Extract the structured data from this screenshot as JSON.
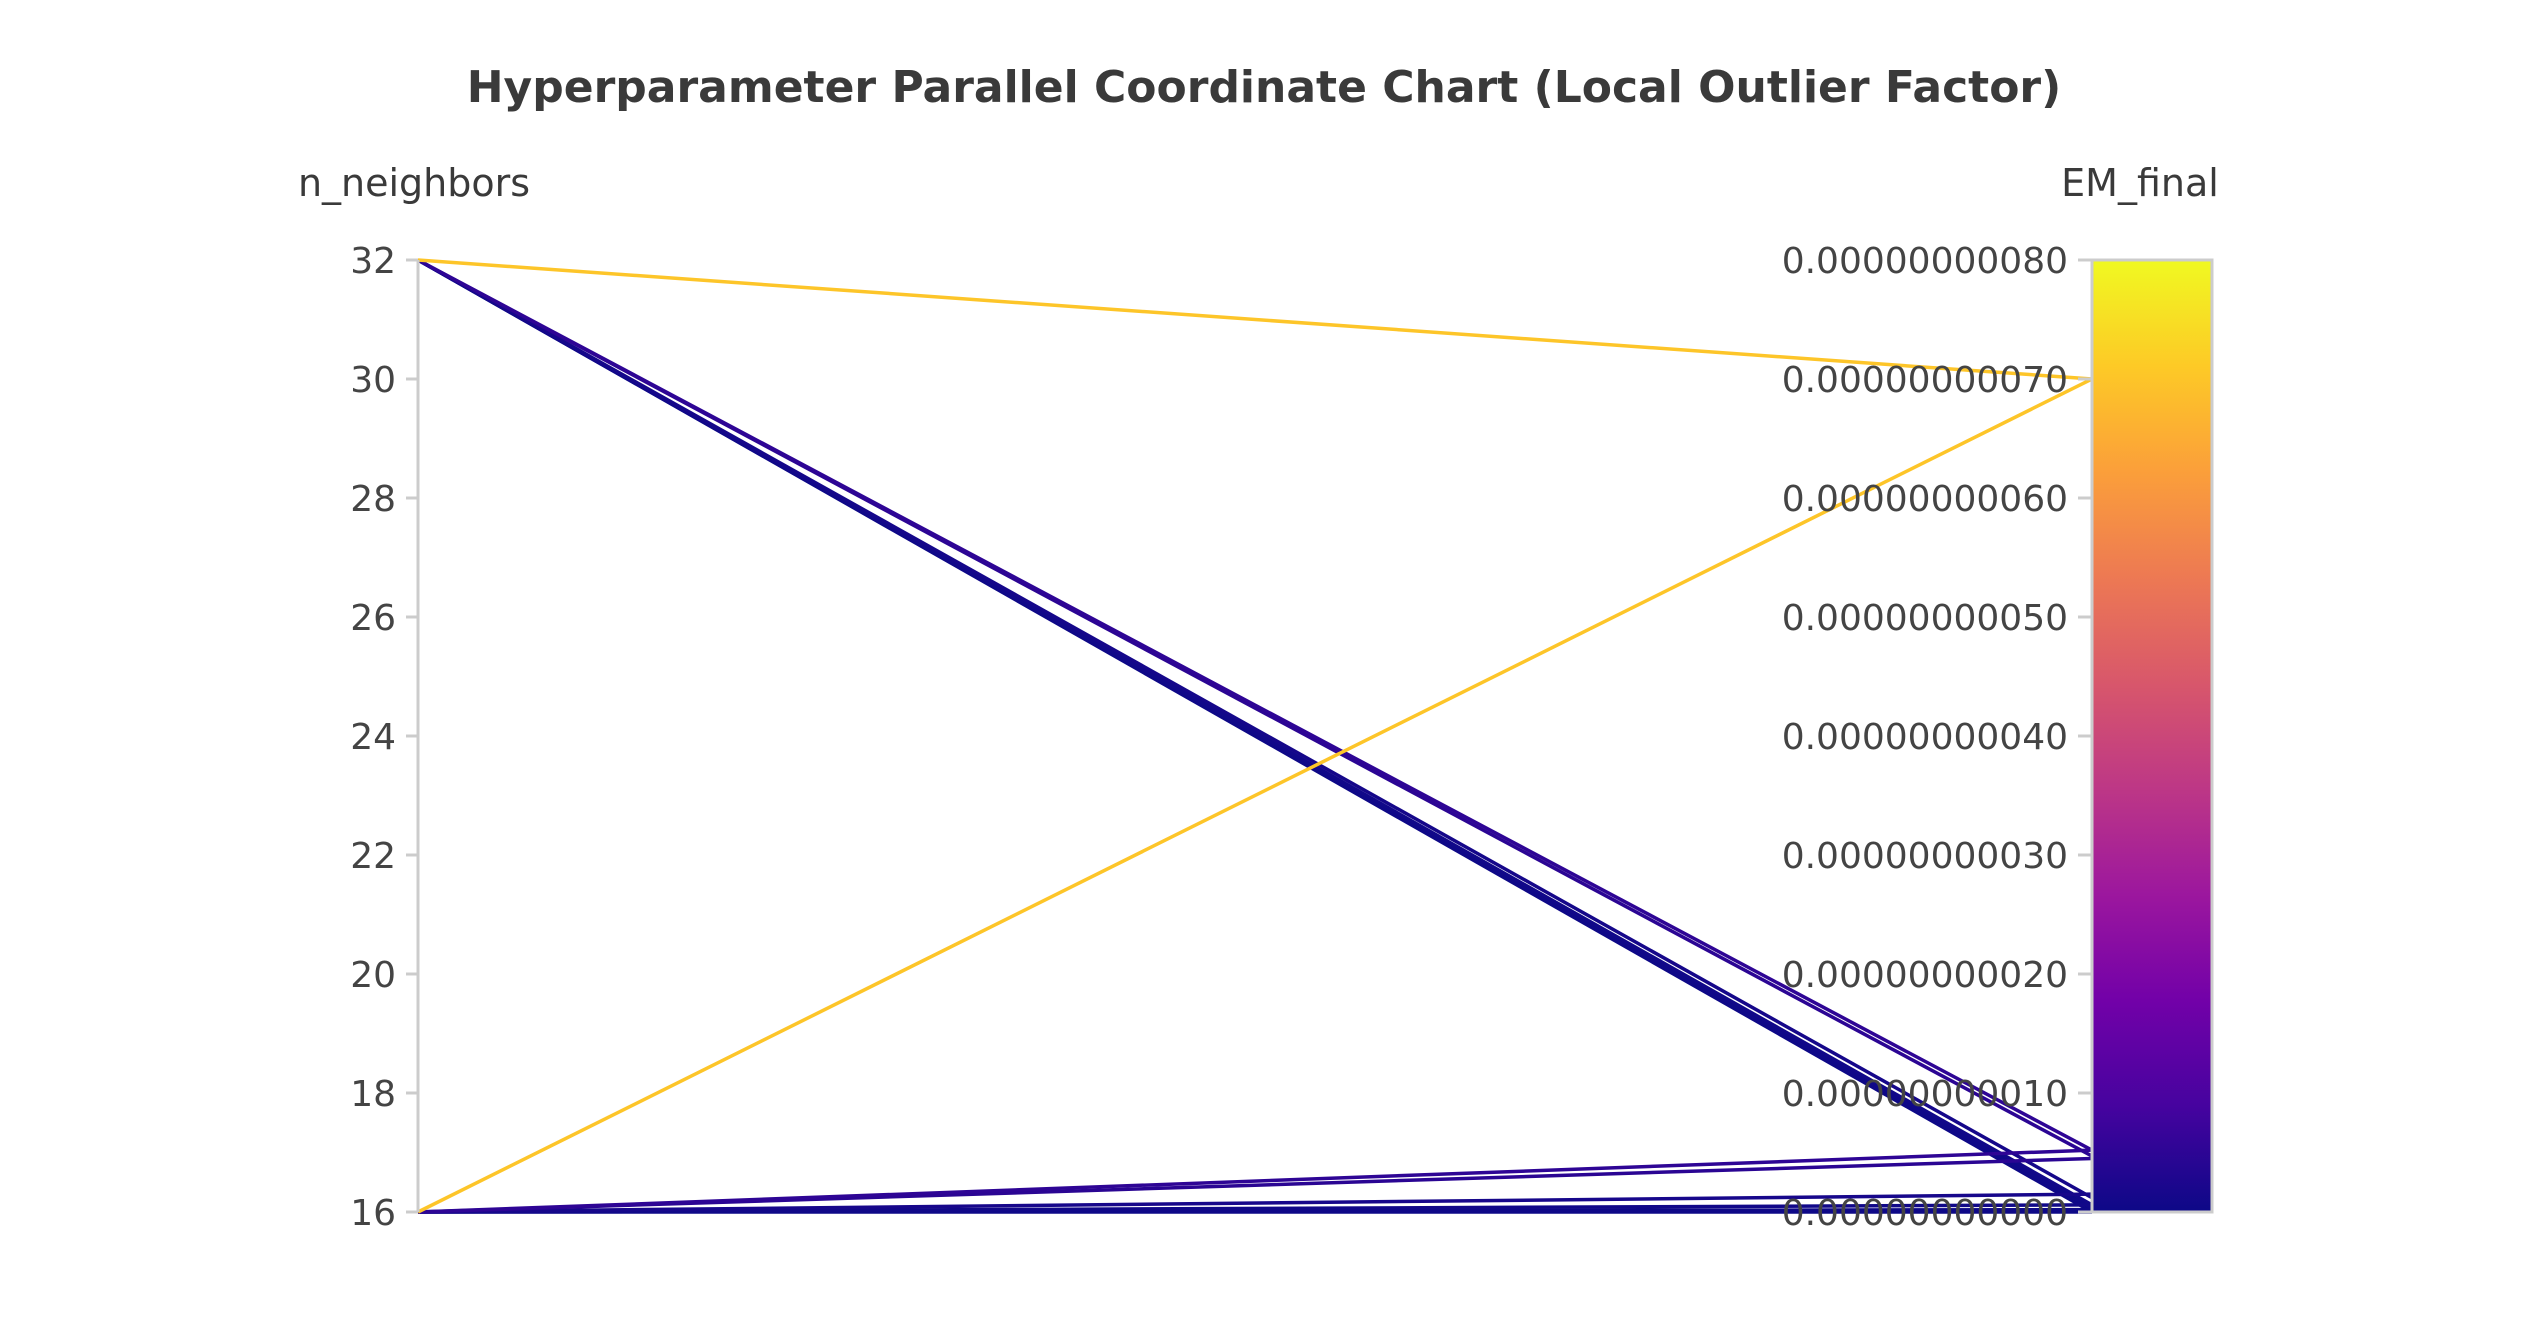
{
  "chart_data": {
    "type": "parallel_coordinates",
    "title": "Hyperparameter Parallel Coordinate Chart (Local Outlier Factor)",
    "axes": [
      {
        "name": "n_neighbors",
        "range": [
          16,
          32
        ],
        "ticks": [
          16,
          18,
          20,
          22,
          24,
          26,
          28,
          30,
          32
        ],
        "tick_labels": [
          "16",
          "18",
          "20",
          "22",
          "24",
          "26",
          "28",
          "30",
          "32"
        ]
      },
      {
        "name": "EM_final",
        "range": [
          0,
          8e-10
        ],
        "ticks": [
          0,
          1e-10,
          2e-10,
          3e-10,
          4e-10,
          5e-10,
          6e-10,
          7e-10,
          8e-10
        ],
        "tick_labels": [
          "0.00000000000",
          "0.00000000010",
          "0.00000000020",
          "0.00000000030",
          "0.00000000040",
          "0.00000000050",
          "0.00000000060",
          "0.00000000070",
          "0.00000000080"
        ]
      }
    ],
    "colorscale": {
      "name": "plasma",
      "stops": [
        "#0d0887",
        "#46039f",
        "#7201a8",
        "#9c179e",
        "#bd3786",
        "#d8576b",
        "#ed7953",
        "#fb9f3a",
        "#fdca26",
        "#f0f921"
      ],
      "range": [
        0,
        8e-10
      ]
    },
    "runs": [
      {
        "n_neighbors": 32,
        "EM_final": 7e-10
      },
      {
        "n_neighbors": 16,
        "EM_final": 7e-10
      },
      {
        "n_neighbors": 32,
        "EM_final": 5.2e-11
      },
      {
        "n_neighbors": 32,
        "EM_final": 4.7e-11
      },
      {
        "n_neighbors": 32,
        "EM_final": 1.2e-11
      },
      {
        "n_neighbors": 32,
        "EM_final": 6e-12
      },
      {
        "n_neighbors": 32,
        "EM_final": 3e-12
      },
      {
        "n_neighbors": 32,
        "EM_final": 1e-12
      },
      {
        "n_neighbors": 32,
        "EM_final": 0.0
      },
      {
        "n_neighbors": 16,
        "EM_final": 5.2e-11
      },
      {
        "n_neighbors": 16,
        "EM_final": 4.5e-11
      },
      {
        "n_neighbors": 16,
        "EM_final": 1.5e-11
      },
      {
        "n_neighbors": 16,
        "EM_final": 6e-12
      },
      {
        "n_neighbors": 16,
        "EM_final": 2e-12
      },
      {
        "n_neighbors": 16,
        "EM_final": 0.0
      }
    ]
  }
}
